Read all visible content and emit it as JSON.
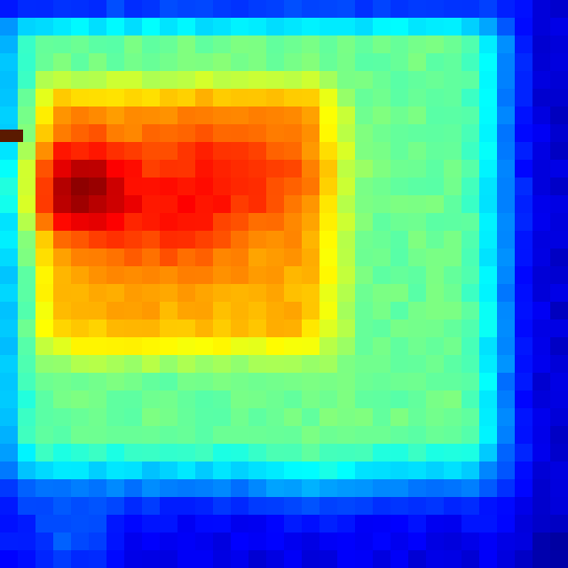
{
  "chart_data": {
    "type": "heatmap",
    "title": "",
    "xlabel": "",
    "ylabel": "",
    "colorscale": "jet",
    "colors": [
      "#00007f",
      "#0000ff",
      "#007fff",
      "#00ffff",
      "#7fff7f",
      "#ffff00",
      "#ff7f00",
      "#ff0000",
      "#7f0000"
    ],
    "value_range": [
      0,
      1
    ],
    "grid": false,
    "legend": "none",
    "rows": 32,
    "cols": 32
  }
}
